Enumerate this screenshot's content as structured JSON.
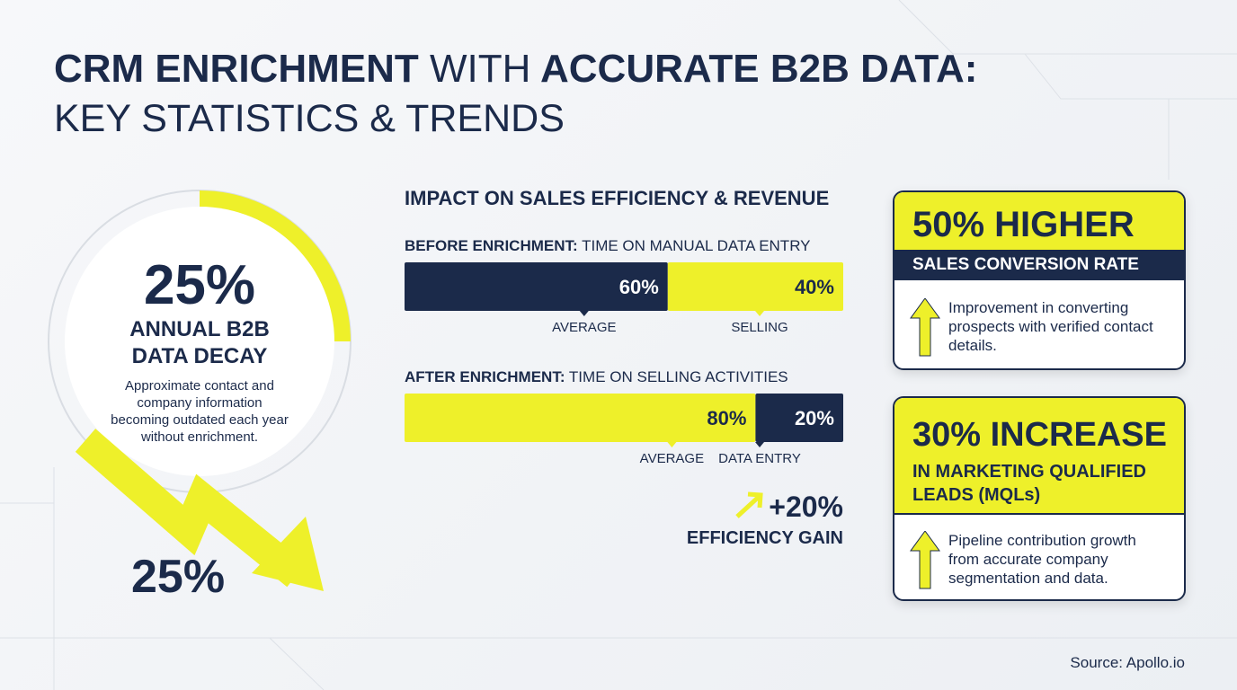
{
  "title": {
    "bold_start": "CRM ENRICHMENT",
    "light_middle": "WITH",
    "bold_end": "ACCURATE B2B DATA:",
    "subtitle": "KEY STATISTICS & TRENDS"
  },
  "decay": {
    "value": 25,
    "value_label": "25%",
    "label": "ANNUAL B2B DATA DECAY",
    "description": "Approximate contact and company information becoming outdated each year without enrichment.",
    "arrow_label": "25%"
  },
  "impact": {
    "title": "IMPACT ON SALES EFFICIENCY & REVENUE",
    "before": {
      "label_bold": "BEFORE ENRICHMENT:",
      "label": "TIME ON MANUAL DATA ENTRY",
      "segments": [
        {
          "value": 60,
          "value_label": "60%",
          "caption": "AVERAGE"
        },
        {
          "value": 40,
          "value_label": "40%",
          "caption": "SELLING"
        }
      ]
    },
    "after": {
      "label_bold": "AFTER ENRICHMENT:",
      "label": "TIME ON SELLING ACTIVITIES",
      "segments": [
        {
          "value": 80,
          "value_label": "80%",
          "caption": "AVERAGE"
        },
        {
          "value": 20,
          "value_label": "20%",
          "caption": "DATA ENTRY"
        }
      ]
    },
    "gain": {
      "value": "+20%",
      "label": "EFFICIENCY GAIN"
    }
  },
  "cards": [
    {
      "headline": "50% HIGHER",
      "subheadline": "SALES CONVERSION RATE",
      "description": "Improvement in converting prospects with verified contact details."
    },
    {
      "headline": "30% INCREASE",
      "subheadline": "IN MARKETING QUALIFIED LEADS (MQLs)",
      "description": "Pipeline contribution growth from accurate company segmentation and data."
    }
  ],
  "source": "Source: Apollo.io"
}
